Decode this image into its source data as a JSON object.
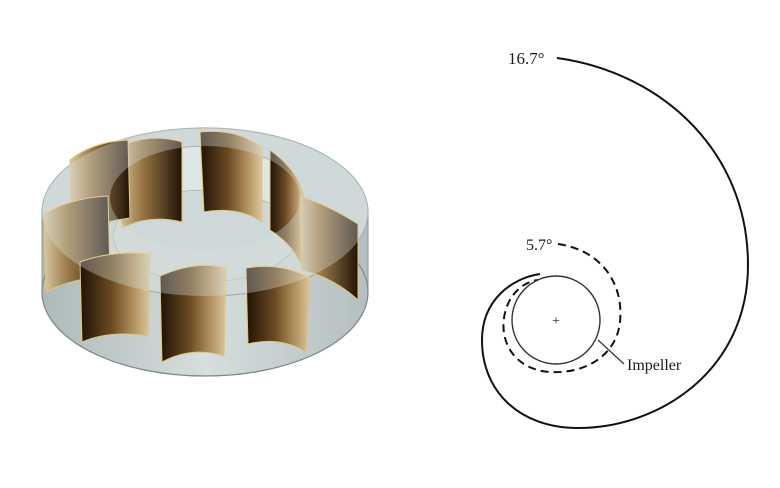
{
  "figure": {
    "impeller_render": {
      "blade_count": 9,
      "colors": {
        "disc": "#c9d3d3",
        "disc_edge": "#9ea9a9",
        "blade_light": "#c8b48e",
        "blade_dark": "#2a1a09",
        "blade_edge": "#e8c46a"
      }
    },
    "volute_diagram": {
      "outer_angle_label": "16.7°",
      "inner_angle_label": "5.7°",
      "impeller_label": "Impeller",
      "center_mark": "+"
    }
  }
}
